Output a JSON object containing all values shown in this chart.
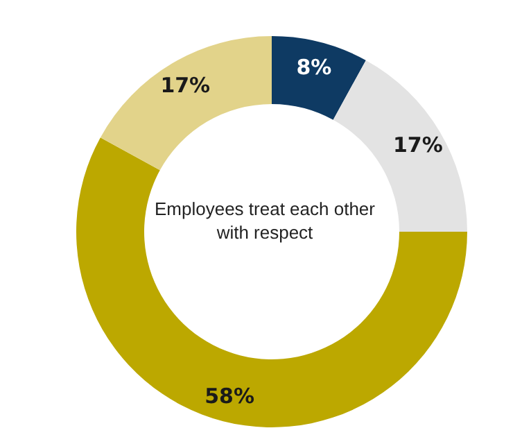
{
  "chart_data": {
    "type": "donut",
    "title": "Employees treat each other with respect",
    "categories": [
      null,
      null,
      null,
      null
    ],
    "values": [
      8,
      17,
      58,
      17
    ],
    "value_labels": [
      "8%",
      "17%",
      "58%",
      "17%"
    ],
    "colors": [
      "#0e3a63",
      "#e3e3e3",
      "#bca800",
      "#e2d38a"
    ],
    "legend": false
  }
}
